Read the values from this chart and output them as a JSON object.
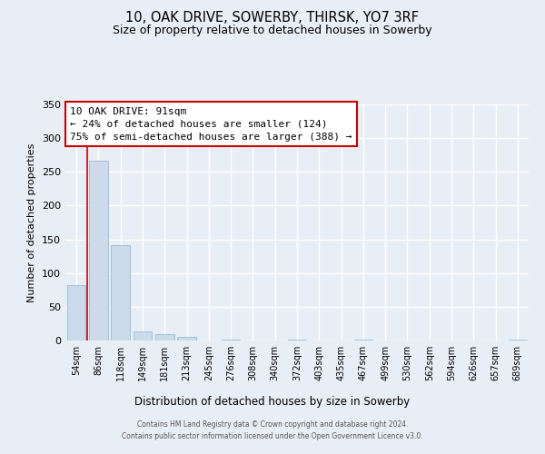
{
  "title": "10, OAK DRIVE, SOWERBY, THIRSK, YO7 3RF",
  "subtitle": "Size of property relative to detached houses in Sowerby",
  "xlabel": "Distribution of detached houses by size in Sowerby",
  "ylabel": "Number of detached properties",
  "bar_labels": [
    "54sqm",
    "86sqm",
    "118sqm",
    "149sqm",
    "181sqm",
    "213sqm",
    "245sqm",
    "276sqm",
    "308sqm",
    "340sqm",
    "372sqm",
    "403sqm",
    "435sqm",
    "467sqm",
    "499sqm",
    "530sqm",
    "562sqm",
    "594sqm",
    "626sqm",
    "657sqm",
    "689sqm"
  ],
  "bar_values": [
    82,
    267,
    142,
    14,
    10,
    5,
    0,
    2,
    0,
    0,
    1,
    0,
    0,
    1,
    0,
    0,
    0,
    0,
    0,
    0,
    2
  ],
  "bar_color": "#ccdaea",
  "bar_edge_color": "#99bbd4",
  "vline_color": "#cc0000",
  "vline_x_idx": 1,
  "ylim": [
    0,
    350
  ],
  "yticks": [
    0,
    50,
    100,
    150,
    200,
    250,
    300,
    350
  ],
  "annotation_title": "10 OAK DRIVE: 91sqm",
  "annotation_line1": "← 24% of detached houses are smaller (124)",
  "annotation_line2": "75% of semi-detached houses are larger (388) →",
  "annotation_box_edgecolor": "#cc0000",
  "footer_line1": "Contains HM Land Registry data © Crown copyright and database right 2024.",
  "footer_line2": "Contains public sector information licensed under the Open Government Licence v3.0.",
  "bg_color": "#e8eef5",
  "grid_color": "#d0dae6"
}
